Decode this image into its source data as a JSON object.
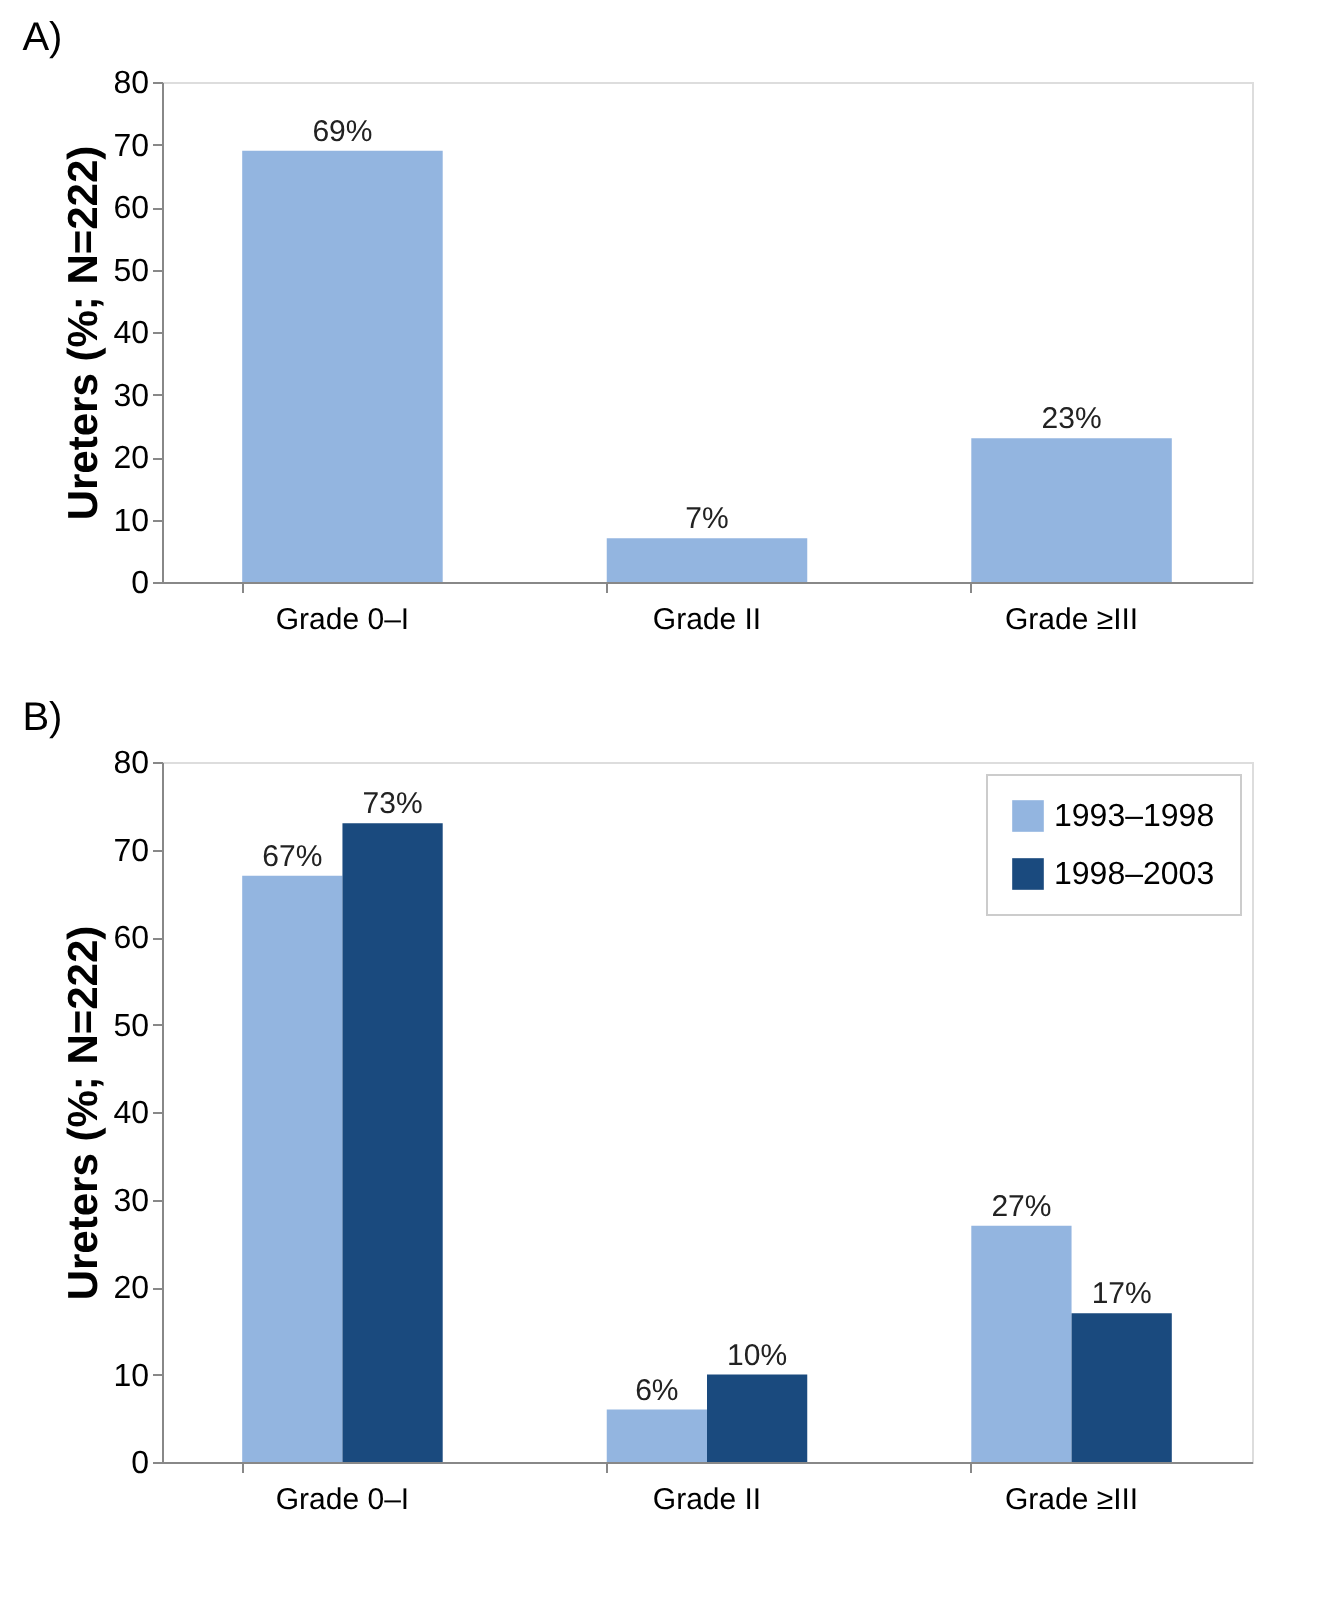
{
  "chart_data": [
    {
      "type": "bar",
      "title": "A)",
      "ylabel": "Ureters (%; N=222)",
      "categories": [
        "Grade 0–I",
        "Grade II",
        "Grade ≥III"
      ],
      "values": [
        69,
        7,
        23
      ],
      "color": "#93b5e0",
      "value_labels": [
        "69%",
        "7%",
        "23%"
      ],
      "ylim": [
        0,
        80
      ],
      "yticks": [
        0,
        10,
        20,
        30,
        40,
        50,
        60,
        70,
        80
      ],
      "grid": false
    },
    {
      "type": "bar",
      "title": "B)",
      "ylabel": "Ureters (%; N=222)",
      "categories": [
        "Grade 0–I",
        "Grade II",
        "Grade ≥III"
      ],
      "series": [
        {
          "name": "1993–1998",
          "color": "#93b5e0",
          "values": [
            67,
            6,
            27
          ],
          "value_labels": [
            "67%",
            "6%",
            "27%"
          ]
        },
        {
          "name": "1998–2003",
          "color": "#1a4a7e",
          "values": [
            73,
            10,
            17
          ],
          "value_labels": [
            "73%",
            "10%",
            "17%"
          ]
        }
      ],
      "ylim": [
        0,
        80
      ],
      "yticks": [
        0,
        10,
        20,
        30,
        40,
        50,
        60,
        70,
        80
      ],
      "grid": false,
      "legend": "top right"
    }
  ]
}
